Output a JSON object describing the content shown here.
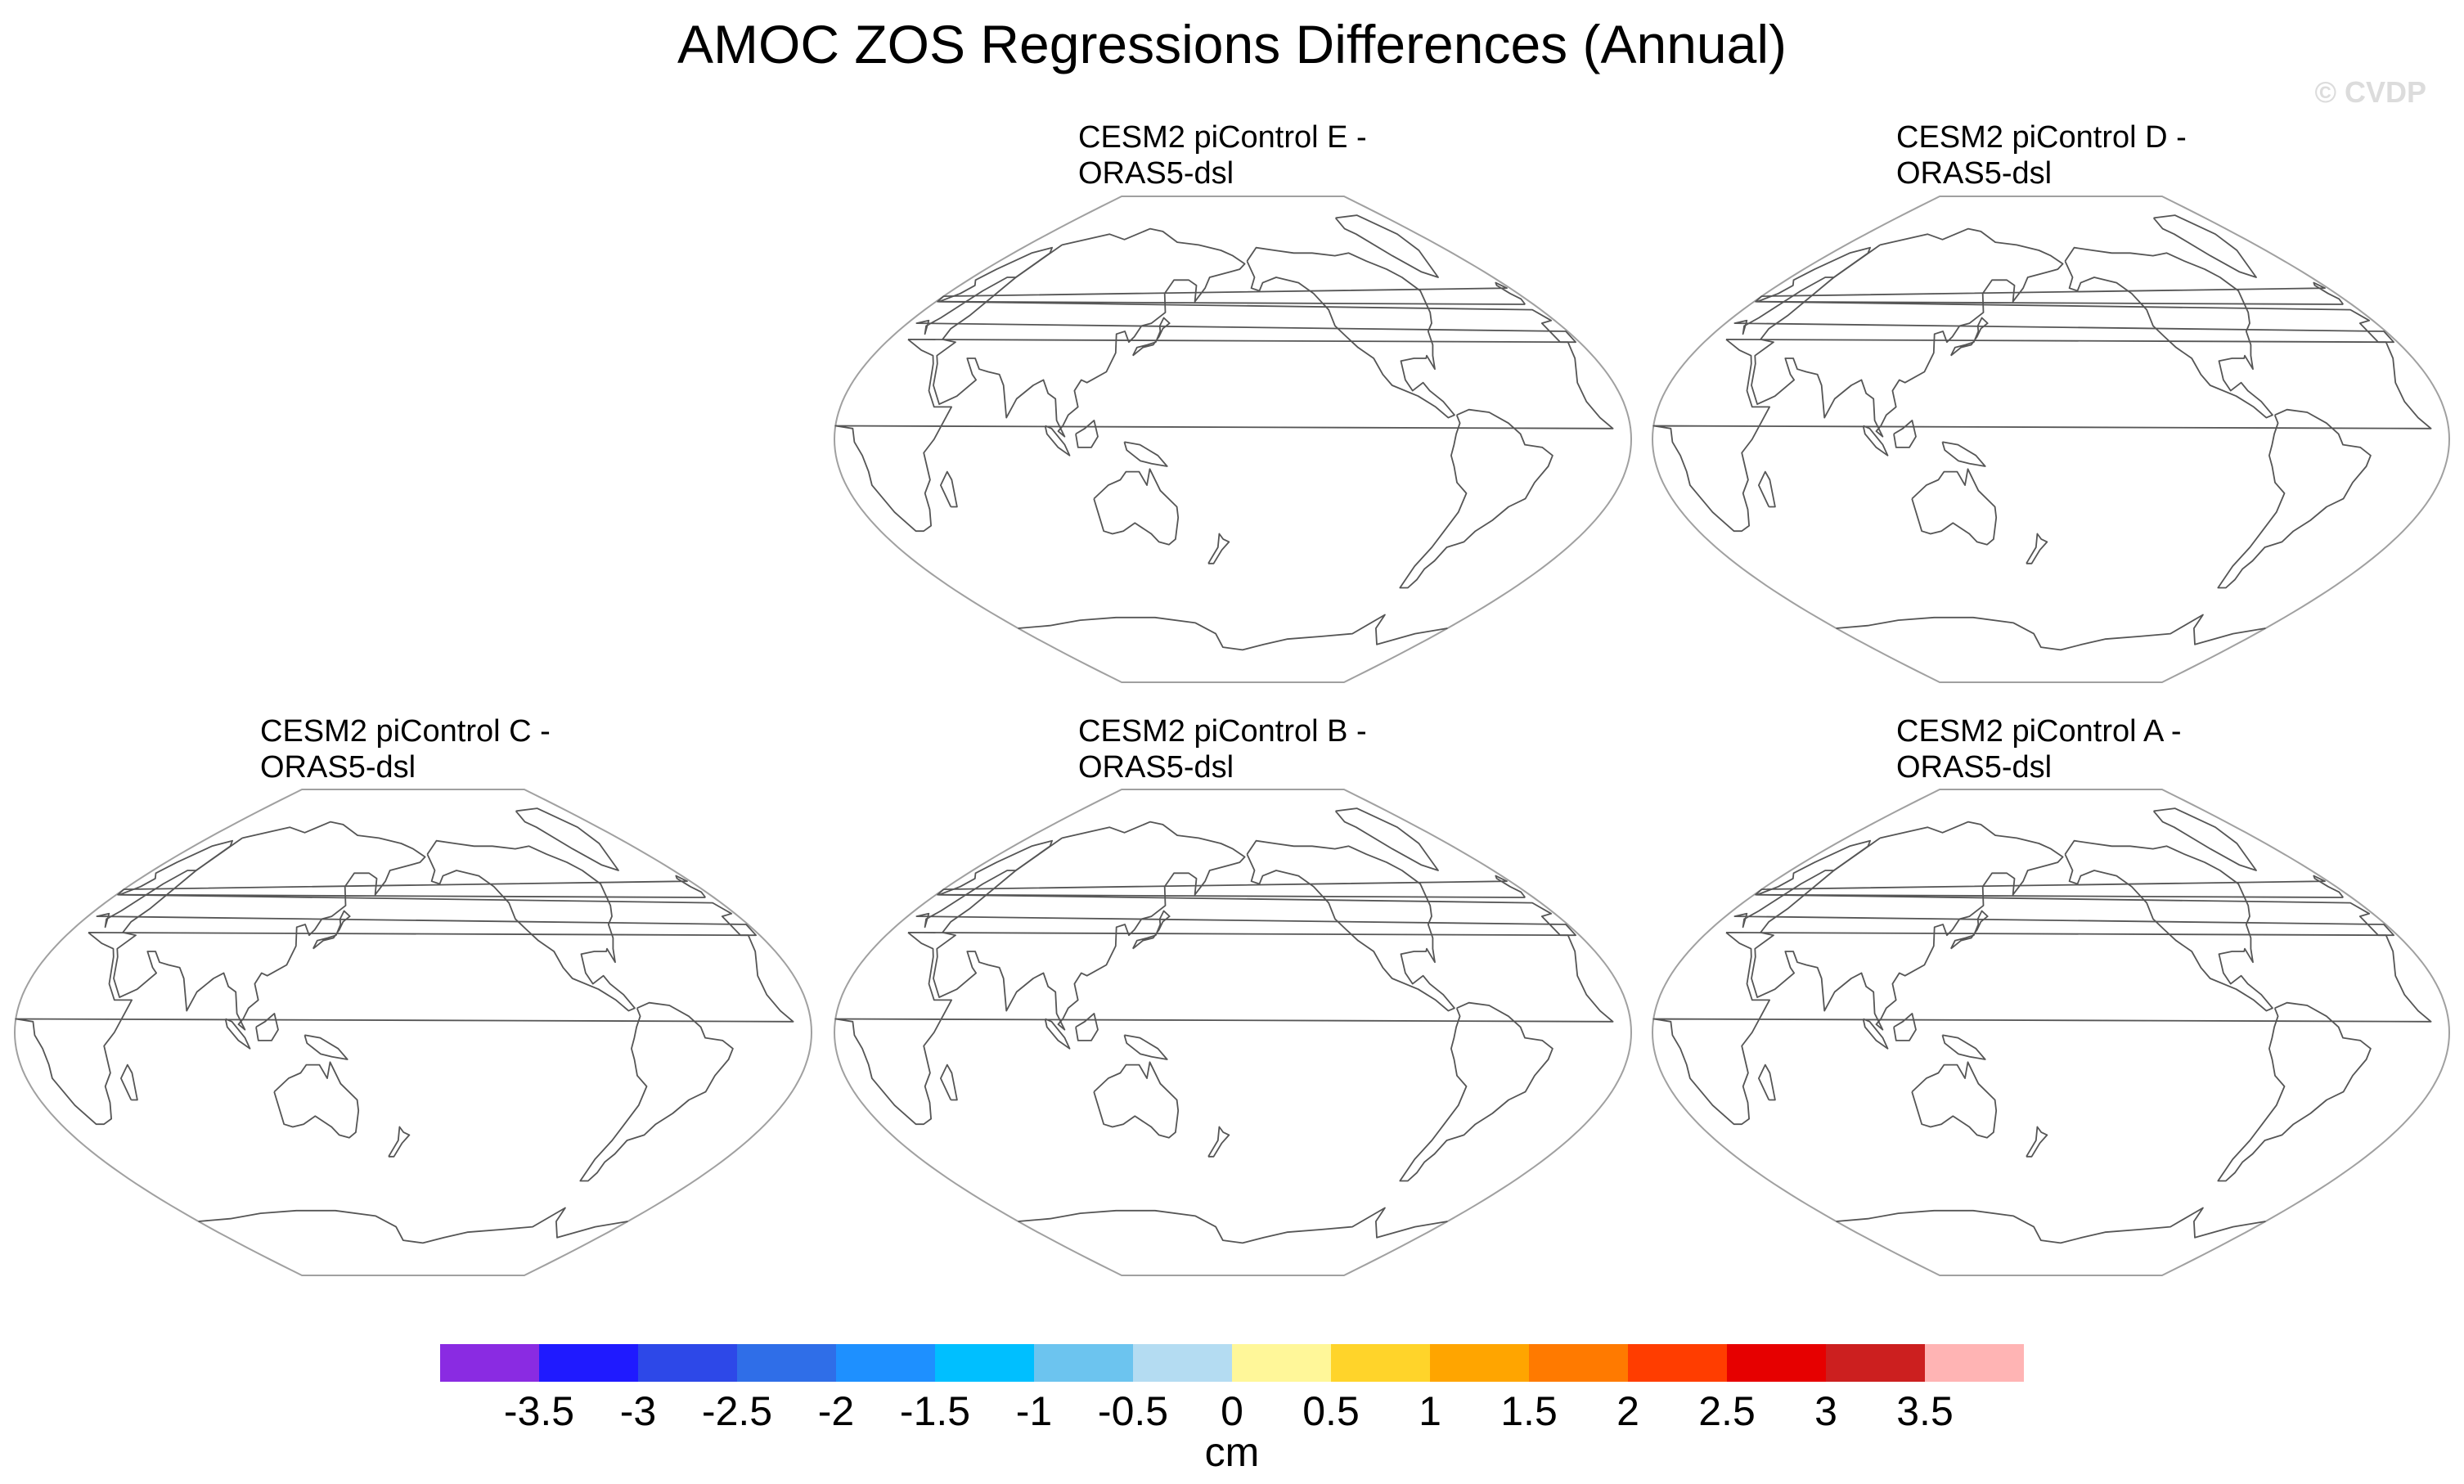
{
  "title": "AMOC ZOS Regressions Differences (Annual)",
  "watermark": "© CVDP",
  "panels": [
    {
      "id": "E",
      "title_line1": "CESM2 piControl E -",
      "title_line2": "ORAS5-dsl"
    },
    {
      "id": "D",
      "title_line1": "CESM2 piControl D -",
      "title_line2": "ORAS5-dsl"
    },
    {
      "id": "C",
      "title_line1": "CESM2 piControl C -",
      "title_line2": "ORAS5-dsl"
    },
    {
      "id": "B",
      "title_line1": "CESM2 piControl B -",
      "title_line2": "ORAS5-dsl"
    },
    {
      "id": "A",
      "title_line1": "CESM2 piControl A -",
      "title_line2": "ORAS5-dsl"
    }
  ],
  "map": {
    "projection": "Winkel tripel (Pacific-centered, 180° center longitude)",
    "outline_color": "#a0a0a0",
    "coastline_color": "#555555",
    "fill": "none"
  },
  "colorbar": {
    "unit": "cm",
    "ticks": [
      "-3.5",
      "-3",
      "-2.5",
      "-2",
      "-1.5",
      "-1",
      "-0.5",
      "0",
      "0.5",
      "1",
      "1.5",
      "2",
      "2.5",
      "3",
      "3.5"
    ],
    "colors": [
      "#8a2be2",
      "#1f1aff",
      "#2d48e8",
      "#2f6ee8",
      "#1e90ff",
      "#00bfff",
      "#6cc4ef",
      "#b4dcf2",
      "#fff799",
      "#ffd42a",
      "#ffa500",
      "#ff7a00",
      "#ff3d00",
      "#e60000",
      "#cc1f1f",
      "#ffb4b4"
    ]
  }
}
